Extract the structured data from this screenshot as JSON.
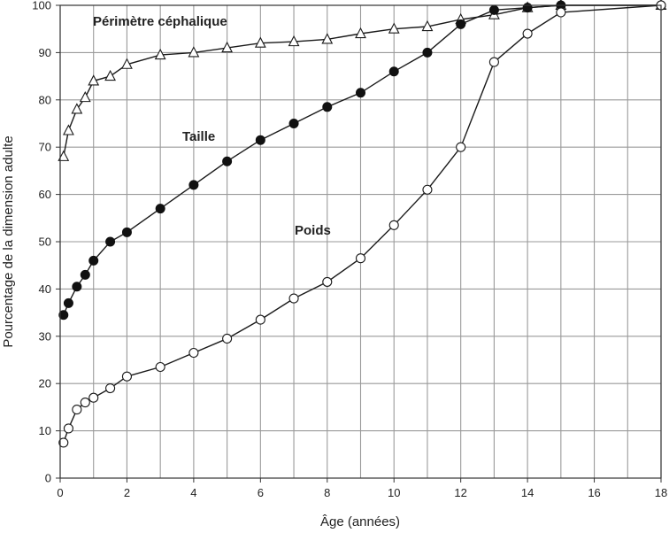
{
  "chart_data": {
    "type": "line",
    "title": "",
    "xlabel": "Âge (années)",
    "ylabel": "Pourcentage de la dimension adulte",
    "xlim": [
      0,
      18
    ],
    "ylim": [
      0,
      100
    ],
    "grid": true,
    "x_ticks": [
      0,
      2,
      4,
      6,
      8,
      10,
      12,
      14,
      16,
      18
    ],
    "y_ticks": [
      0,
      10,
      20,
      30,
      40,
      50,
      60,
      70,
      80,
      90,
      100
    ],
    "series": [
      {
        "name": "Périmètre céphalique",
        "marker": "open-triangle",
        "x": [
          0.1,
          0.25,
          0.5,
          0.75,
          1,
          1.5,
          2,
          3,
          4,
          5,
          6,
          7,
          8,
          9,
          10,
          11,
          12,
          13,
          14,
          15,
          18
        ],
        "y": [
          68,
          73.5,
          78,
          80.5,
          84,
          85,
          87.5,
          89.5,
          90,
          91,
          92,
          92.3,
          92.8,
          94,
          95,
          95.5,
          97,
          98,
          99.5,
          100,
          100
        ]
      },
      {
        "name": "Taille",
        "marker": "filled-circle",
        "x": [
          0.1,
          0.25,
          0.5,
          0.75,
          1,
          1.5,
          2,
          3,
          4,
          5,
          6,
          7,
          8,
          9,
          10,
          11,
          12,
          13,
          14,
          15,
          18
        ],
        "y": [
          34.5,
          37,
          40.5,
          43,
          46,
          50,
          52,
          57,
          62,
          67,
          71.5,
          75,
          78.5,
          81.5,
          86,
          90,
          96,
          99,
          99.5,
          100,
          100
        ]
      },
      {
        "name": "Poids",
        "marker": "open-circle",
        "x": [
          0.1,
          0.25,
          0.5,
          0.75,
          1,
          1.5,
          2,
          3,
          4,
          5,
          6,
          7,
          8,
          9,
          10,
          11,
          12,
          13,
          14,
          15,
          18
        ],
        "y": [
          7.5,
          10.5,
          14.5,
          16,
          17,
          19,
          21.5,
          23.5,
          26.5,
          29.5,
          33.5,
          38,
          41.5,
          46.5,
          53.5,
          61,
          70,
          88,
          94,
          98.5,
          100
        ]
      }
    ]
  }
}
